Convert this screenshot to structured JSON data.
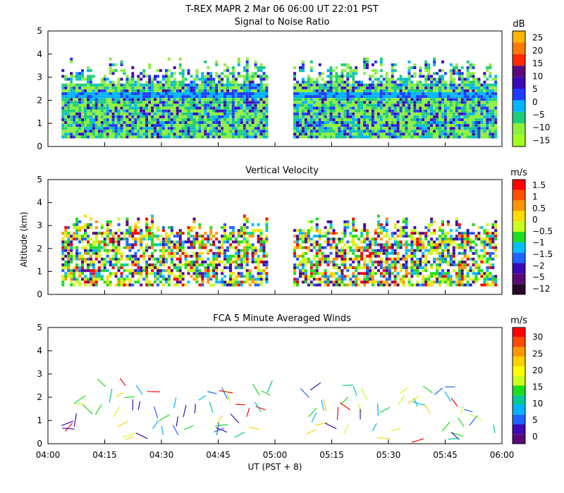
{
  "title": "T-REX   MAPR   2 Mar 06   06:00 UT   22:01   PST",
  "shared_y_label": "Altitude (km)",
  "shared_x_label": "UT  (PST + 8)",
  "colors": {
    "missing": "#ffffff",
    "frame": "#000000"
  },
  "chart_data": [
    {
      "type": "heatmap",
      "title": "Signal to Noise Ratio",
      "unit": "dB",
      "xlim": [
        4.0,
        6.0
      ],
      "ylim": [
        0,
        5
      ],
      "y_ticks": [
        0,
        1,
        2,
        3,
        4,
        5
      ],
      "gap_ut": [
        4.97,
        5.08
      ],
      "data_ut": [
        4.06,
        5.97
      ],
      "colorbar": {
        "labels": [
          "25",
          "20",
          "15",
          "10",
          "5",
          "0",
          "−5",
          "−10",
          "−15"
        ],
        "colors": [
          "#ffb400",
          "#ff7800",
          "#ff2800",
          "#5a0a78",
          "#3c0ab4",
          "#1e3cff",
          "#00b4ff",
          "#1ecd78",
          "#8cf03c",
          "#a0ff1e"
        ]
      },
      "mean_profile_km": [
        0.4,
        2.2,
        3.0
      ]
    },
    {
      "type": "heatmap",
      "title": "Vertical Velocity",
      "unit": "m/s",
      "xlim": [
        4.0,
        6.0
      ],
      "ylim": [
        0,
        5
      ],
      "y_ticks": [
        0,
        1,
        2,
        3,
        4,
        5
      ],
      "gap_ut": [
        4.97,
        5.08
      ],
      "colorbar": {
        "labels": [
          "1.5",
          "1",
          "0.5",
          "0",
          "−0.5",
          "−1",
          "−1.5",
          "−2",
          "−5",
          "−12"
        ],
        "colors": [
          "#ff0000",
          "#ff5000",
          "#ff9600",
          "#ffdc00",
          "#c8ff1e",
          "#1edc1e",
          "#00beff",
          "#1e64ff",
          "#3c0ab4",
          "#5a0a78",
          "#280a28"
        ]
      }
    },
    {
      "type": "scatter",
      "title": "FCA 5 Minute Averaged Winds",
      "unit": "m/s",
      "xlim": [
        4.0,
        6.0
      ],
      "ylim": [
        0,
        5
      ],
      "y_ticks": [
        0,
        1,
        2,
        3,
        4,
        5
      ],
      "x_ticks": [
        "04:00",
        "04:15",
        "04:30",
        "04:45",
        "05:00",
        "05:15",
        "05:30",
        "05:45",
        "06:00"
      ],
      "colorbar": {
        "labels": [
          "30",
          "25",
          "20",
          "15",
          "10",
          "5",
          "0"
        ],
        "colors": [
          "#ff0000",
          "#ff4a00",
          "#ff9600",
          "#ffd200",
          "#ffff00",
          "#c8ff1e",
          "#1edc1e",
          "#00c896",
          "#00b4ff",
          "#1e64ff",
          "#3c0ab4",
          "#5a0a78"
        ]
      }
    }
  ]
}
